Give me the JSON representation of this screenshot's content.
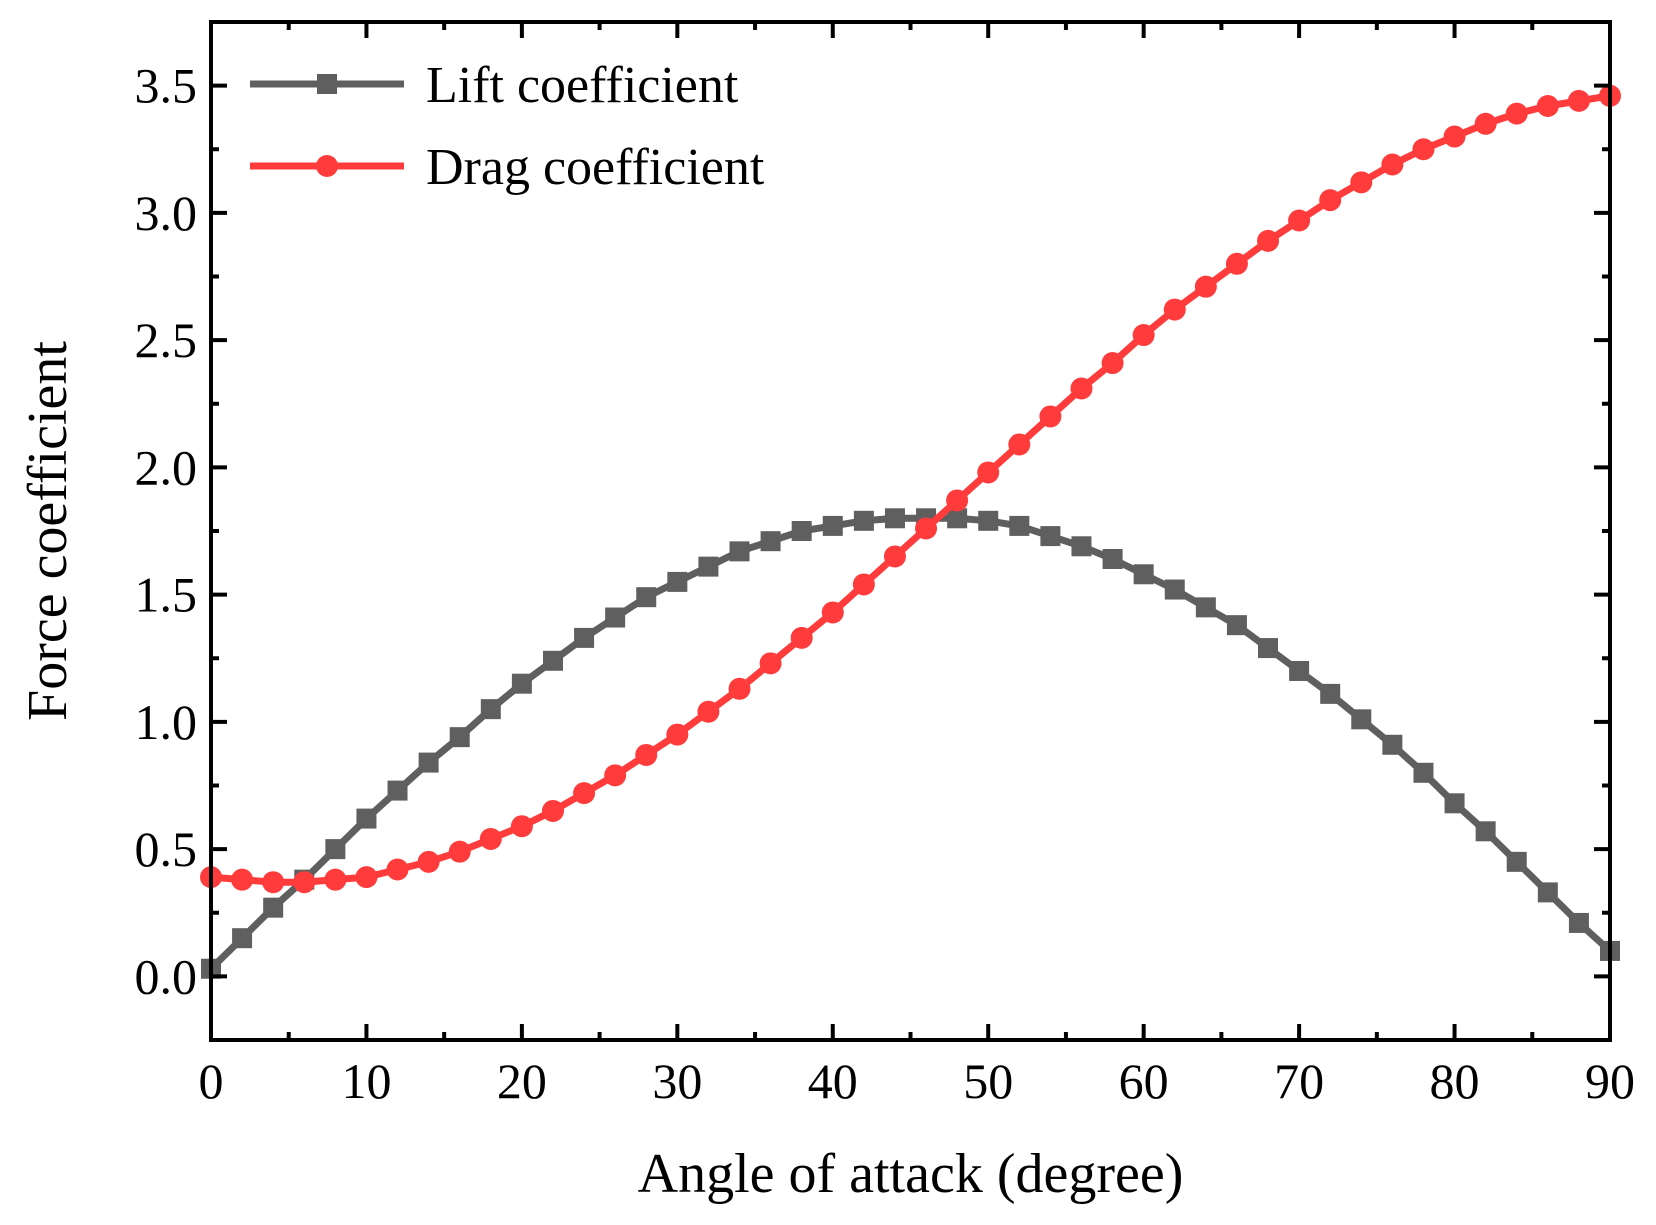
{
  "chart_data": {
    "type": "line",
    "title": "",
    "xlabel": "Angle of attack (degree)",
    "ylabel": "Force coefficient",
    "xlim": [
      0,
      90
    ],
    "ylim": [
      -0.25,
      3.75
    ],
    "xticks": [
      0,
      10,
      20,
      30,
      40,
      50,
      60,
      70,
      80,
      90
    ],
    "xtick_labels": [
      "0",
      "10",
      "20",
      "30",
      "40",
      "50",
      "60",
      "70",
      "80",
      "90"
    ],
    "yticks": [
      0.0,
      0.5,
      1.0,
      1.5,
      2.0,
      2.5,
      3.0,
      3.5
    ],
    "ytick_labels": [
      "0.0",
      "0.5",
      "1.0",
      "1.5",
      "2.0",
      "2.5",
      "3.0",
      "3.5"
    ],
    "legend_position": "top-left",
    "grid": false,
    "x": [
      0,
      2,
      4,
      6,
      8,
      10,
      12,
      14,
      16,
      18,
      20,
      22,
      24,
      26,
      28,
      30,
      32,
      34,
      36,
      38,
      40,
      42,
      44,
      46,
      48,
      50,
      52,
      54,
      56,
      58,
      60,
      62,
      64,
      66,
      68,
      70,
      72,
      74,
      76,
      78,
      80,
      82,
      84,
      86,
      88,
      90
    ],
    "series": [
      {
        "name": "Lift coefficient",
        "color": "#5f5f5f",
        "marker": "square",
        "values": [
          0.03,
          0.15,
          0.27,
          0.38,
          0.5,
          0.62,
          0.73,
          0.84,
          0.94,
          1.05,
          1.15,
          1.24,
          1.33,
          1.41,
          1.49,
          1.55,
          1.61,
          1.67,
          1.71,
          1.75,
          1.77,
          1.79,
          1.8,
          1.8,
          1.8,
          1.79,
          1.77,
          1.73,
          1.69,
          1.64,
          1.58,
          1.52,
          1.45,
          1.38,
          1.29,
          1.2,
          1.11,
          1.01,
          0.91,
          0.8,
          0.68,
          0.57,
          0.45,
          0.33,
          0.21,
          0.1
        ]
      },
      {
        "name": "Drag coefficient",
        "color": "#ff3b3b",
        "marker": "circle",
        "values": [
          0.39,
          0.38,
          0.37,
          0.37,
          0.38,
          0.39,
          0.42,
          0.45,
          0.49,
          0.54,
          0.59,
          0.65,
          0.72,
          0.79,
          0.87,
          0.95,
          1.04,
          1.13,
          1.23,
          1.33,
          1.43,
          1.54,
          1.65,
          1.76,
          1.87,
          1.98,
          2.09,
          2.2,
          2.31,
          2.41,
          2.52,
          2.62,
          2.71,
          2.8,
          2.89,
          2.97,
          3.05,
          3.12,
          3.19,
          3.25,
          3.3,
          3.35,
          3.39,
          3.42,
          3.44,
          3.46
        ]
      }
    ]
  }
}
